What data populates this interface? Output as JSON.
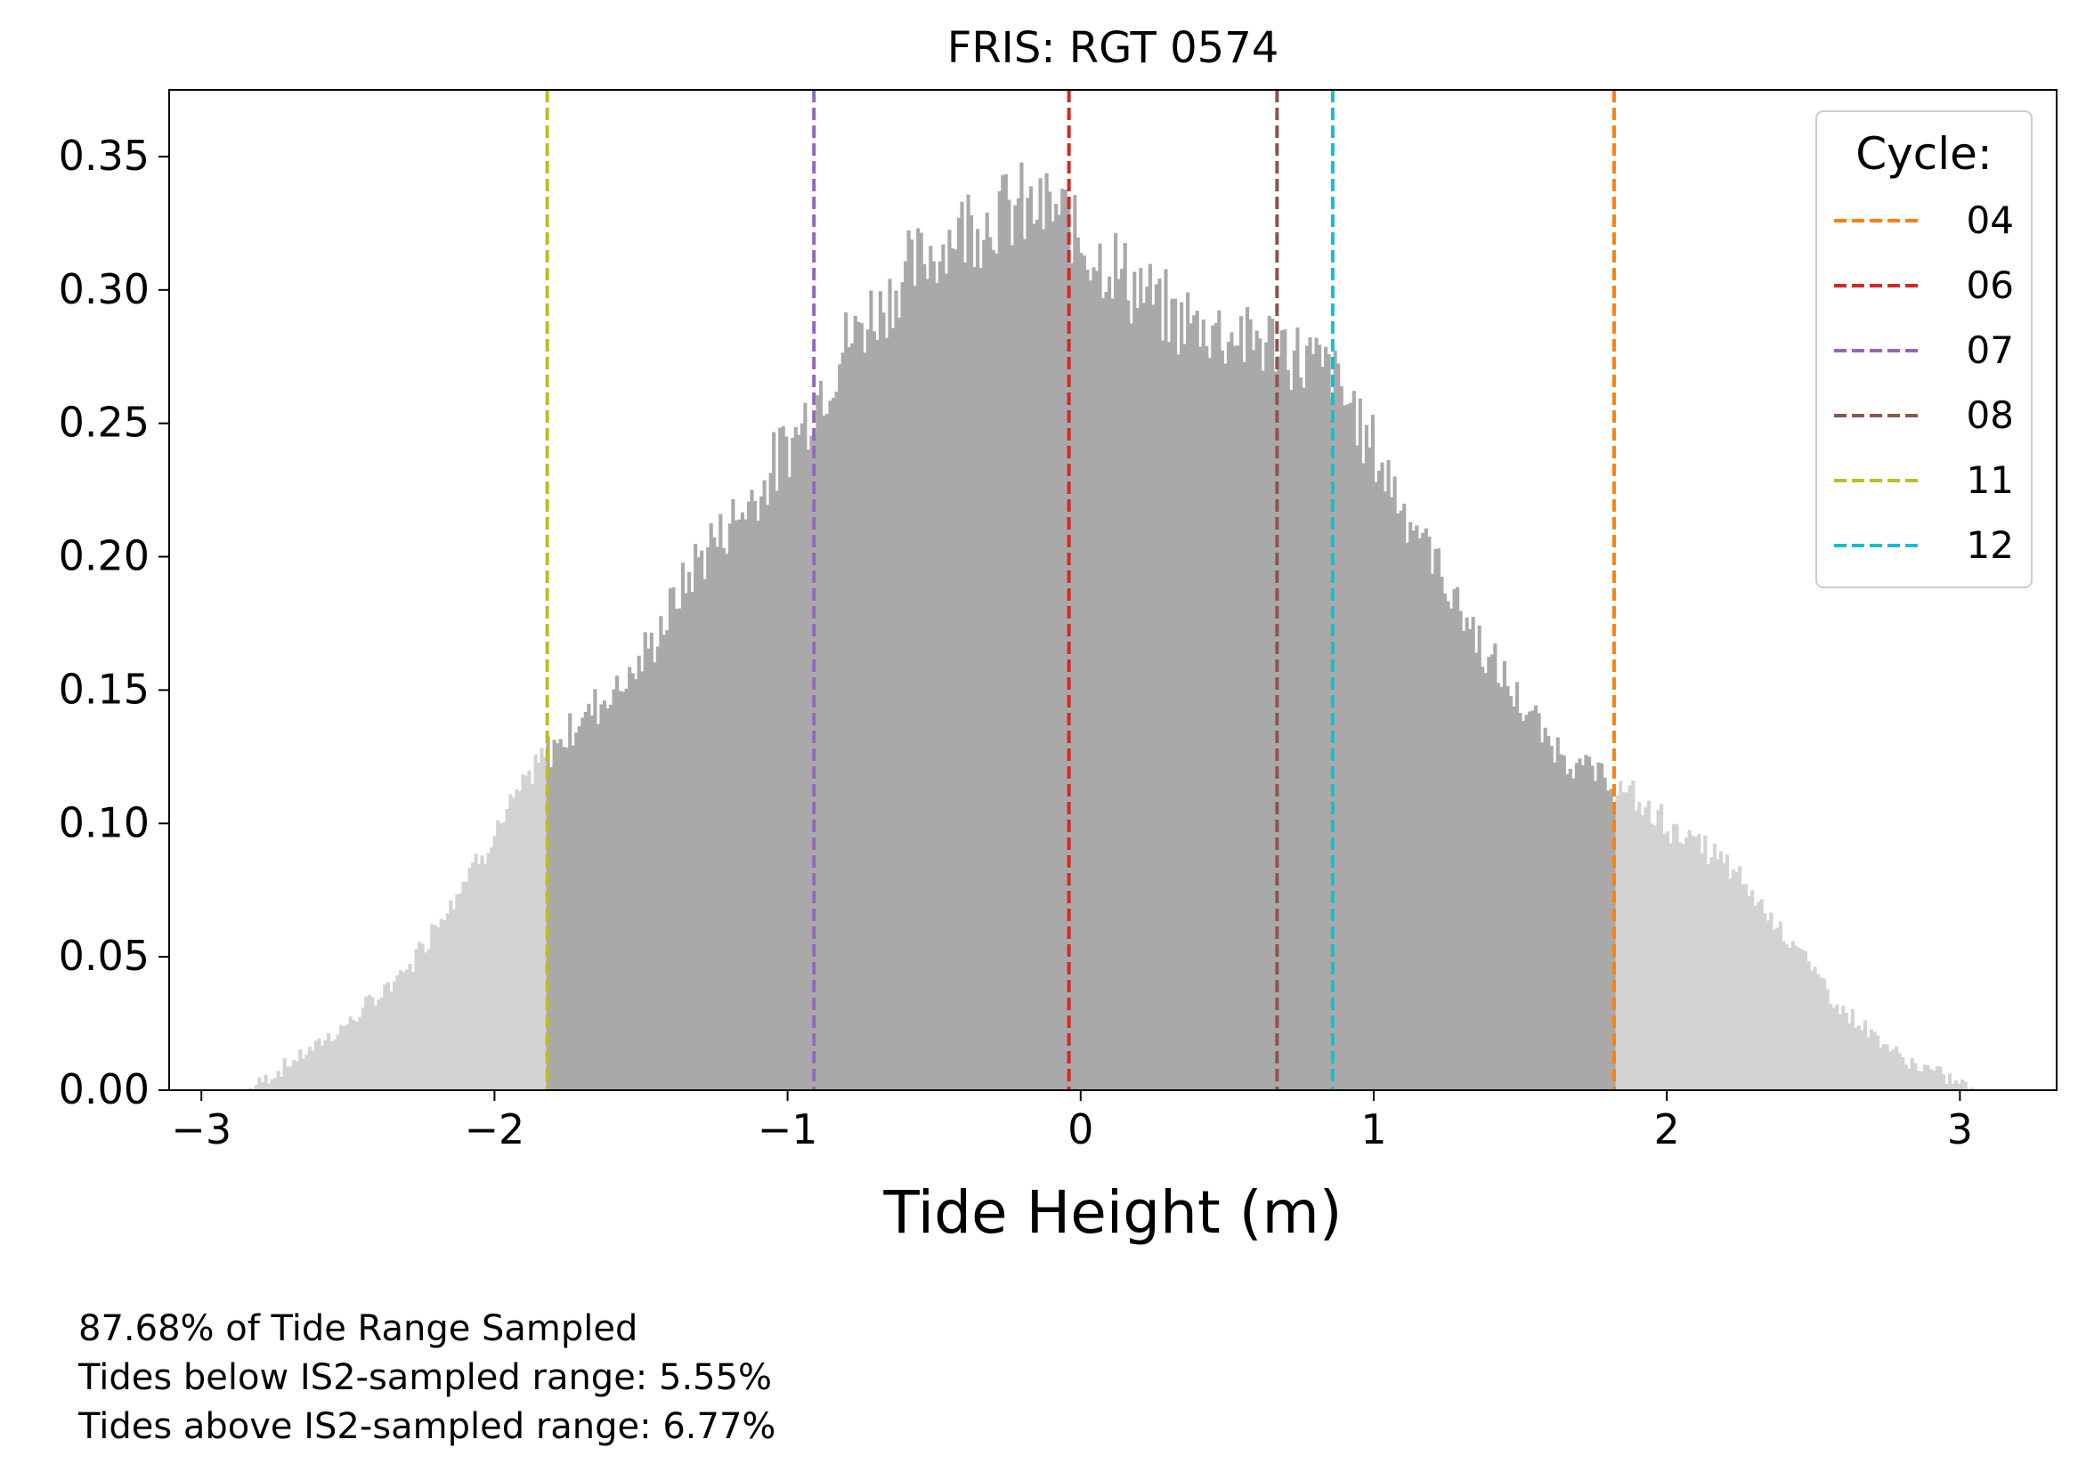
{
  "chart_data": {
    "type": "histogram",
    "title": "FRIS: RGT 0574",
    "xlabel": "Tide Height (m)",
    "ylabel": "",
    "xlim": [
      -3.11,
      3.33
    ],
    "ylim": [
      0.0,
      0.375
    ],
    "x_ticks": [
      -3,
      -2,
      -1,
      0,
      1,
      2,
      3
    ],
    "y_ticks": [
      0.0,
      0.05,
      0.1,
      0.15,
      0.2,
      0.25,
      0.3,
      0.35
    ],
    "y_tick_labels": [
      "0.00",
      "0.05",
      "0.10",
      "0.15",
      "0.20",
      "0.25",
      "0.30",
      "0.35"
    ],
    "sampled_range": [
      -1.82,
      1.82
    ],
    "colors": {
      "sampled": "#a9a9a9",
      "unsampled": "#d3d3d3"
    },
    "density_profile": {
      "x": [
        -2.84,
        -2.7,
        -2.5,
        -2.3,
        -2.1,
        -1.95,
        -1.83,
        -1.7,
        -1.5,
        -1.3,
        -1.1,
        -0.95,
        -0.8,
        -0.6,
        -0.4,
        -0.25,
        -0.1,
        0.1,
        0.3,
        0.5,
        0.65,
        0.85,
        1.0,
        1.2,
        1.4,
        1.6,
        1.8,
        2.0,
        2.2,
        2.4,
        2.6,
        2.8,
        2.95,
        3.05
      ],
      "y": [
        0.0,
        0.01,
        0.025,
        0.045,
        0.08,
        0.105,
        0.125,
        0.14,
        0.16,
        0.2,
        0.225,
        0.25,
        0.28,
        0.305,
        0.325,
        0.33,
        0.33,
        0.31,
        0.29,
        0.285,
        0.28,
        0.27,
        0.24,
        0.2,
        0.16,
        0.13,
        0.115,
        0.1,
        0.085,
        0.06,
        0.03,
        0.012,
        0.005,
        0.0
      ]
    },
    "cycle_lines": [
      {
        "label": "04",
        "x": 1.82,
        "color": "#ff7f0e"
      },
      {
        "label": "06",
        "x": -0.04,
        "color": "#d62728"
      },
      {
        "label": "07",
        "x": -0.91,
        "color": "#9467bd"
      },
      {
        "label": "08",
        "x": 0.67,
        "color": "#8c564b"
      },
      {
        "label": "11",
        "x": -1.82,
        "color": "#bcbd22"
      },
      {
        "label": "12",
        "x": 0.86,
        "color": "#17becf"
      }
    ],
    "legend": {
      "title": "Cycle:",
      "position": "top-right"
    }
  },
  "notes": {
    "line1": "87.68% of Tide Range Sampled",
    "line2": "Tides below IS2-sampled range: 5.55%",
    "line3": "Tides above IS2-sampled range: 6.77%"
  }
}
